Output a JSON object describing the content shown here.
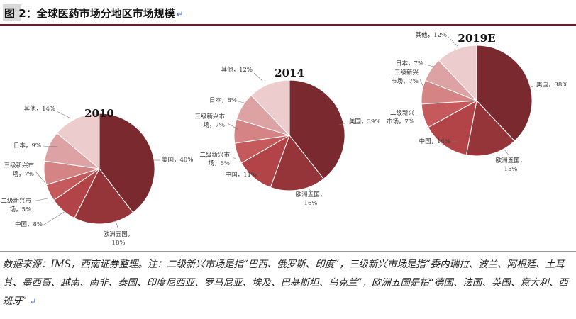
{
  "title": "图 2：全球医药市场分地区市场规模",
  "source_note": "数据来源：IMS，西南证券整理。注：二级新兴市场是指“巴西、俄罗斯、印度”，三级新兴市场是指“委内瑞拉、波兰、阿根廷、土耳其、墨西哥、越南、南非、泰国、印度尼西亚、罗马尼亚、埃及、巴基斯坦、乌克兰”，欧洲五国是指“德国、法国、英国、意大利、西班牙”",
  "colors": {
    "美国": "#7a2a2f",
    "欧洲五国": "#953439",
    "中国": "#b24448",
    "二级新兴市场": "#c55a5c",
    "三级新兴市场": "#d48485",
    "日本": "#dda2a3",
    "其他": "#eccccc"
  },
  "chart_data": [
    {
      "type": "pie",
      "title": "2010",
      "slices": [
        {
          "name": "美国",
          "value": 40,
          "label": [
            "美国，40%"
          ]
        },
        {
          "name": "欧洲五国",
          "value": 18,
          "label": [
            "欧洲五国，",
            "18%"
          ]
        },
        {
          "name": "中国",
          "value": 8,
          "label": [
            "中国，8%"
          ]
        },
        {
          "name": "二级新兴市场",
          "value": 5,
          "label": [
            "二级新兴市",
            "场，5%"
          ]
        },
        {
          "name": "三级新兴市场",
          "value": 7,
          "label": [
            "三级新兴市",
            "场，7%"
          ]
        },
        {
          "name": "日本",
          "value": 9,
          "label": [
            "日本，9%"
          ]
        },
        {
          "name": "其他",
          "value": 14,
          "label": [
            "其他，14%"
          ]
        }
      ]
    },
    {
      "type": "pie",
      "title": "2014",
      "slices": [
        {
          "name": "美国",
          "value": 39,
          "label": [
            "美国，39%"
          ]
        },
        {
          "name": "欧洲五国",
          "value": 16,
          "label": [
            "欧洲五国，",
            "16%"
          ]
        },
        {
          "name": "中国",
          "value": 11,
          "label": [
            "中国，11%"
          ]
        },
        {
          "name": "二级新兴市场",
          "value": 6,
          "label": [
            "二级新兴市",
            "场，6%"
          ]
        },
        {
          "name": "三级新兴市场",
          "value": 7,
          "label": [
            "三级新兴市",
            "场，7%"
          ]
        },
        {
          "name": "日本",
          "value": 8,
          "label": [
            "日本，8%"
          ]
        },
        {
          "name": "其他",
          "value": 12,
          "label": [
            "其他，12%"
          ]
        }
      ]
    },
    {
      "type": "pie",
      "title": "2019E",
      "slices": [
        {
          "name": "美国",
          "value": 38,
          "label": [
            "美国，38%"
          ]
        },
        {
          "name": "欧洲五国",
          "value": 15,
          "label": [
            "欧洲五国，",
            "15%"
          ]
        },
        {
          "name": "中国",
          "value": 14,
          "label": [
            "中国，14%"
          ]
        },
        {
          "name": "二级新兴市场",
          "value": 7,
          "label": [
            "二级新兴",
            "市场，7%"
          ]
        },
        {
          "name": "三级新兴市场",
          "value": 7,
          "label": [
            "三级新兴",
            "市场，7%"
          ]
        },
        {
          "name": "日本",
          "value": 7,
          "label": [
            "日本，7%"
          ]
        },
        {
          "name": "其他",
          "value": 12,
          "label": [
            "其他，12%"
          ]
        }
      ]
    }
  ]
}
